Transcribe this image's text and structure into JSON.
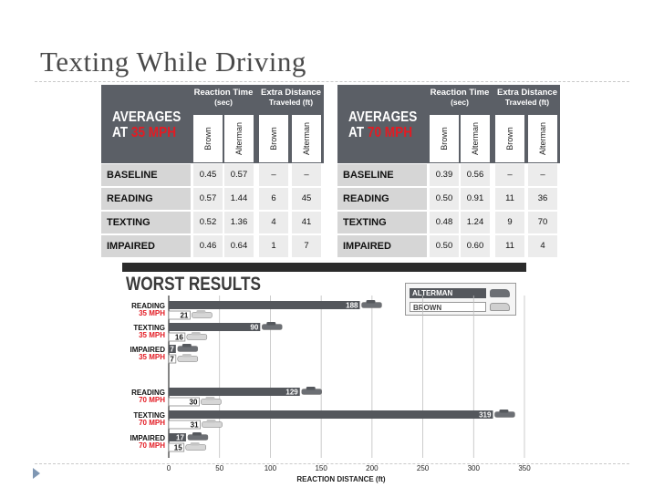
{
  "slide": {
    "title": "Texting While Driving"
  },
  "tables": [
    {
      "id": "avg35",
      "title_line1": "AVERAGES",
      "title_at": "AT",
      "title_speed": "35 MPH",
      "group_rt": "Reaction Time",
      "group_rt_unit": "(sec)",
      "group_ed": "Extra Distance",
      "group_ed_unit": "Traveled (ft)",
      "subcols": [
        "Brown",
        "Alterman",
        "Brown",
        "Alterman"
      ],
      "rows": [
        {
          "label": "BASELINE",
          "values": [
            "0.45",
            "0.57",
            "–",
            "–"
          ]
        },
        {
          "label": "READING",
          "values": [
            "0.57",
            "1.44",
            "6",
            "45"
          ]
        },
        {
          "label": "TEXTING",
          "values": [
            "0.52",
            "1.36",
            "4",
            "41"
          ]
        },
        {
          "label": "IMPAIRED",
          "values": [
            "0.46",
            "0.64",
            "1",
            "7"
          ]
        }
      ]
    },
    {
      "id": "avg70",
      "title_line1": "AVERAGES",
      "title_at": "AT",
      "title_speed": "70 MPH",
      "group_rt": "Reaction Time",
      "group_rt_unit": "(sec)",
      "group_ed": "Extra Distance",
      "group_ed_unit": "Traveled (ft)",
      "subcols": [
        "Brown",
        "Alterman",
        "Brown",
        "Alterman"
      ],
      "rows": [
        {
          "label": "BASELINE",
          "values": [
            "0.39",
            "0.56",
            "–",
            "–"
          ]
        },
        {
          "label": "READING",
          "values": [
            "0.50",
            "0.91",
            "11",
            "36"
          ]
        },
        {
          "label": "TEXTING",
          "values": [
            "0.48",
            "1.24",
            "9",
            "70"
          ]
        },
        {
          "label": "IMPAIRED",
          "values": [
            "0.50",
            "0.60",
            "11",
            "4"
          ]
        }
      ]
    }
  ],
  "chart_data": {
    "type": "bar",
    "title": "WORST RESULTS",
    "xlabel": "REACTION DISTANCE (ft)",
    "xlim": [
      0,
      350
    ],
    "xticks": [
      0,
      50,
      100,
      150,
      200,
      250,
      300,
      350
    ],
    "orientation": "horizontal",
    "legend_position": "top-right",
    "categories": [
      {
        "line1": "READING",
        "line2": "35 MPH"
      },
      {
        "line1": "TEXTING",
        "line2": "35 MPH"
      },
      {
        "line1": "IMPAIRED",
        "line2": "35 MPH"
      },
      {
        "line1": "READING",
        "line2": "70 MPH"
      },
      {
        "line1": "TEXTING",
        "line2": "70 MPH"
      },
      {
        "line1": "IMPAIRED",
        "line2": "70 MPH"
      }
    ],
    "series": [
      {
        "name": "ALTERMAN",
        "color": "#54575c",
        "values": [
          188,
          90,
          7,
          129,
          319,
          17
        ]
      },
      {
        "name": "BROWN",
        "color": "#ffffff",
        "values": [
          21,
          16,
          7,
          30,
          31,
          15
        ]
      }
    ],
    "colors": {
      "label_black": "#111111",
      "label_red": "#e31b23"
    }
  }
}
